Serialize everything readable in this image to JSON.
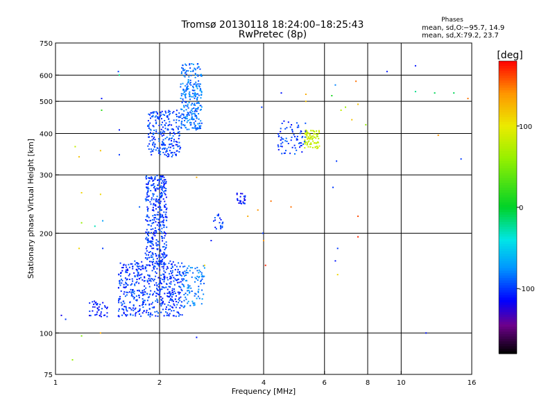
{
  "chart_data": {
    "type": "scatter",
    "title": "Tromsø 20130118 18:24:00–18:25:43",
    "subtitle": "RwPretec (8p)",
    "phases_header": "Phases",
    "phases_stats": [
      {
        "label": "mean, sd,O:",
        "value": "−95.7, 14.9"
      },
      {
        "label": "mean, sd,X:",
        "value": "79.2, 23.7"
      }
    ],
    "xlabel": "Frequency [MHz]",
    "ylabel": "Stationary phase Virtual Height [km]",
    "x_scale": "log",
    "y_scale": "log",
    "xlim": [
      1,
      16
    ],
    "ylim": [
      75,
      750
    ],
    "x_ticks": [
      1,
      2,
      4,
      6,
      8,
      10,
      16
    ],
    "y_ticks": [
      75,
      100,
      200,
      300,
      400,
      500,
      600,
      750
    ],
    "x_grid": [
      2,
      4,
      6,
      8,
      10
    ],
    "y_grid": [
      100,
      200,
      300,
      400,
      500,
      600
    ],
    "grid": true,
    "colorbar": {
      "label": "[deg]",
      "range": [
        -180,
        180
      ],
      "ticks": [
        100,
        0,
        -100
      ]
    },
    "clusters": [
      {
        "desc": "main F trace low",
        "x": [
          1.52,
          2.35
        ],
        "y": [
          112,
          165
        ],
        "n": 520,
        "phase": -100
      },
      {
        "desc": "main F trace mid",
        "x": [
          1.82,
          2.1
        ],
        "y": [
          160,
          300
        ],
        "n": 380,
        "phase": -100
      },
      {
        "desc": "main F trace high lower",
        "x": [
          1.85,
          2.3
        ],
        "y": [
          340,
          470
        ],
        "n": 230,
        "phase": -98
      },
      {
        "desc": "main F trace high upper",
        "x": [
          2.3,
          2.65
        ],
        "y": [
          410,
          650
        ],
        "n": 260,
        "phase": -85
      },
      {
        "desc": "second trace",
        "x": [
          2.35,
          2.7
        ],
        "y": [
          120,
          160
        ],
        "n": 90,
        "phase": -80
      },
      {
        "desc": "low start",
        "x": [
          1.25,
          1.42
        ],
        "y": [
          112,
          125
        ],
        "n": 40,
        "phase": -110
      },
      {
        "desc": "group 3MHz",
        "x": [
          2.85,
          3.05
        ],
        "y": [
          205,
          230
        ],
        "n": 20,
        "phase": -100
      },
      {
        "desc": "group 3.4MHz",
        "x": [
          3.35,
          3.55
        ],
        "y": [
          245,
          265
        ],
        "n": 25,
        "phase": -110
      },
      {
        "desc": "X trace",
        "x": [
          5.25,
          5.8
        ],
        "y": [
          360,
          410
        ],
        "n": 80,
        "phase": 80
      },
      {
        "desc": "O trace near X",
        "x": [
          4.4,
          5.3
        ],
        "y": [
          345,
          440
        ],
        "n": 70,
        "phase": -100
      }
    ],
    "points": [
      {
        "x": 1.04,
        "y": 113,
        "phase": -120
      },
      {
        "x": 1.07,
        "y": 110,
        "phase": -100
      },
      {
        "x": 1.12,
        "y": 83,
        "phase": 60
      },
      {
        "x": 1.14,
        "y": 365,
        "phase": 80
      },
      {
        "x": 1.17,
        "y": 340,
        "phase": 120
      },
      {
        "x": 1.19,
        "y": 265,
        "phase": 110
      },
      {
        "x": 1.19,
        "y": 215,
        "phase": 60
      },
      {
        "x": 1.17,
        "y": 180,
        "phase": 110
      },
      {
        "x": 1.19,
        "y": 98,
        "phase": 50
      },
      {
        "x": 1.3,
        "y": 210,
        "phase": -30
      },
      {
        "x": 1.36,
        "y": 510,
        "phase": -110
      },
      {
        "x": 1.36,
        "y": 470,
        "phase": 20
      },
      {
        "x": 1.35,
        "y": 355,
        "phase": 120
      },
      {
        "x": 1.35,
        "y": 262,
        "phase": 110
      },
      {
        "x": 1.37,
        "y": 218,
        "phase": -70
      },
      {
        "x": 1.37,
        "y": 180,
        "phase": -100
      },
      {
        "x": 1.35,
        "y": 100,
        "phase": 130
      },
      {
        "x": 1.52,
        "y": 615,
        "phase": -100
      },
      {
        "x": 1.53,
        "y": 600,
        "phase": -20
      },
      {
        "x": 1.53,
        "y": 410,
        "phase": -110
      },
      {
        "x": 1.53,
        "y": 345,
        "phase": -100
      },
      {
        "x": 1.75,
        "y": 240,
        "phase": -90
      },
      {
        "x": 2.56,
        "y": 97,
        "phase": -110
      },
      {
        "x": 2.56,
        "y": 295,
        "phase": 130
      },
      {
        "x": 2.7,
        "y": 160,
        "phase": 110
      },
      {
        "x": 2.82,
        "y": 190,
        "phase": -110
      },
      {
        "x": 3.6,
        "y": 225,
        "phase": 130
      },
      {
        "x": 3.85,
        "y": 235,
        "phase": 140
      },
      {
        "x": 3.95,
        "y": 480,
        "phase": -100
      },
      {
        "x": 3.98,
        "y": 200,
        "phase": -100
      },
      {
        "x": 4.0,
        "y": 190,
        "phase": 140
      },
      {
        "x": 4.05,
        "y": 160,
        "phase": 170
      },
      {
        "x": 4.5,
        "y": 530,
        "phase": -110
      },
      {
        "x": 4.2,
        "y": 250,
        "phase": 150
      },
      {
        "x": 4.8,
        "y": 240,
        "phase": 150
      },
      {
        "x": 5.3,
        "y": 525,
        "phase": 130
      },
      {
        "x": 5.3,
        "y": 500,
        "phase": 120
      },
      {
        "x": 6.3,
        "y": 520,
        "phase": 10
      },
      {
        "x": 6.45,
        "y": 560,
        "phase": -80
      },
      {
        "x": 6.5,
        "y": 330,
        "phase": -100
      },
      {
        "x": 6.35,
        "y": 275,
        "phase": -100
      },
      {
        "x": 6.55,
        "y": 180,
        "phase": -100
      },
      {
        "x": 6.45,
        "y": 165,
        "phase": -110
      },
      {
        "x": 6.55,
        "y": 150,
        "phase": 110
      },
      {
        "x": 6.7,
        "y": 470,
        "phase": 80
      },
      {
        "x": 6.9,
        "y": 480,
        "phase": 60
      },
      {
        "x": 7.2,
        "y": 440,
        "phase": 120
      },
      {
        "x": 7.4,
        "y": 575,
        "phase": 150
      },
      {
        "x": 7.5,
        "y": 490,
        "phase": 120
      },
      {
        "x": 7.5,
        "y": 225,
        "phase": 160
      },
      {
        "x": 7.5,
        "y": 195,
        "phase": 170
      },
      {
        "x": 7.9,
        "y": 425,
        "phase": 60
      },
      {
        "x": 9.1,
        "y": 615,
        "phase": -110
      },
      {
        "x": 11.0,
        "y": 640,
        "phase": -110
      },
      {
        "x": 11.0,
        "y": 535,
        "phase": -20
      },
      {
        "x": 12.5,
        "y": 530,
        "phase": -10
      },
      {
        "x": 12.8,
        "y": 395,
        "phase": 140
      },
      {
        "x": 11.8,
        "y": 100,
        "phase": -110
      },
      {
        "x": 14.2,
        "y": 530,
        "phase": -10
      },
      {
        "x": 14.9,
        "y": 335,
        "phase": -100
      },
      {
        "x": 15.6,
        "y": 510,
        "phase": 150
      }
    ]
  }
}
